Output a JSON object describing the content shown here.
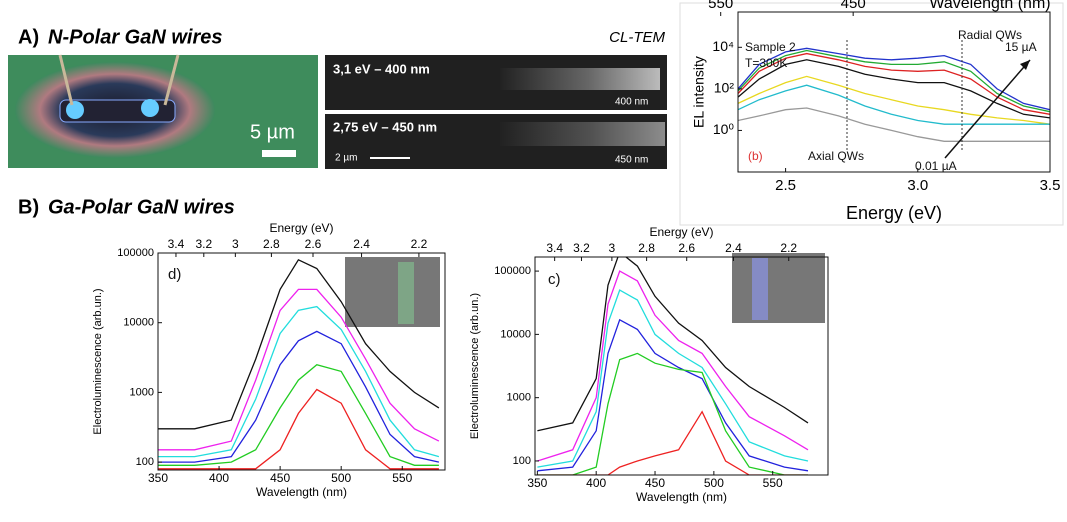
{
  "panels": {
    "a_letter": "A)",
    "a_title": "N-Polar GaN wires",
    "scale_photo": "5 µm",
    "cl_tem": "CL-TEM",
    "tem1": "3,1  eV – 400 nm",
    "tem1_scale": "400 nm",
    "tem2": "2,75 eV – 450 nm",
    "tem2_bar": "2 µm",
    "tem2_scale": "450 nm",
    "b_letter": "B)",
    "b_title": "Ga-Polar GaN wires"
  },
  "chart_data": [
    {
      "type": "line",
      "log_y": true,
      "xlabel": "Energy (eV)",
      "ylabel": "EL intensity",
      "x2label": "Wavelength (nm)",
      "xlim": [
        2.32,
        3.5
      ],
      "xticks": [
        2.5,
        {
          "value": 3,
          "label": "3.0"
        },
        3.5
      ],
      "x2ticks": [
        550,
        450
      ],
      "ylim": [
        0.01,
        500000
      ],
      "yticks": [
        {
          "value": 1,
          "label": "10⁰"
        },
        {
          "value": 100,
          "label": "10²"
        },
        {
          "value": 10000,
          "label": "10⁴"
        }
      ],
      "annotations": [
        "Sample 2",
        "T=300K",
        "Radial QWs",
        "15 µA",
        "Axial QWs",
        "0.01 µA",
        "(b)"
      ],
      "x": [
        2.32,
        2.4,
        2.5,
        2.58,
        2.7,
        2.8,
        2.9,
        3.0,
        3.1,
        3.2,
        3.3,
        3.4,
        3.5
      ],
      "series": [
        {
          "color": "#2233cc",
          "values": [
            100,
            1500,
            6000,
            9000,
            5000,
            3000,
            2500,
            3000,
            4000,
            1500,
            100,
            20,
            10
          ]
        },
        {
          "color": "#22aa33",
          "values": [
            80,
            1000,
            4000,
            7000,
            3500,
            2000,
            1500,
            1500,
            2000,
            700,
            60,
            15,
            8
          ]
        },
        {
          "color": "#dd2222",
          "values": [
            60,
            700,
            3000,
            5000,
            2500,
            1200,
            800,
            700,
            800,
            300,
            40,
            10,
            6
          ]
        },
        {
          "color": "#111111",
          "values": [
            40,
            300,
            1500,
            2500,
            1200,
            500,
            300,
            200,
            200,
            80,
            20,
            6,
            4
          ]
        },
        {
          "color": "#e8d820",
          "values": [
            20,
            60,
            200,
            400,
            150,
            60,
            30,
            15,
            10,
            6,
            4,
            3,
            2
          ]
        },
        {
          "color": "#22bbcc",
          "values": [
            10,
            30,
            80,
            150,
            50,
            15,
            6,
            3,
            2,
            2,
            2,
            2,
            2
          ]
        },
        {
          "color": "#999999",
          "values": [
            3,
            5,
            10,
            12,
            5,
            2,
            1,
            0.5,
            0.3,
            0.3,
            0.3,
            0.3,
            0.3
          ]
        }
      ]
    },
    {
      "type": "line",
      "log_y": true,
      "xlabel": "Wavelength (nm)",
      "ylabel": "Electroluminescence (arb.un.)",
      "x2label": "Energy (eV)",
      "annotations": [
        "d)"
      ],
      "xlim": [
        350,
        585
      ],
      "xticks": [
        350,
        400,
        450,
        500,
        550
      ],
      "x2ticks": [
        3.4,
        3.2,
        3,
        2.8,
        2.6,
        2.4,
        2.2
      ],
      "ylim": [
        77,
        100000
      ],
      "yticks": [
        100,
        1000,
        10000,
        100000
      ],
      "x": [
        350,
        380,
        410,
        430,
        450,
        465,
        480,
        500,
        520,
        540,
        560,
        580
      ],
      "series": [
        {
          "color": "#111111",
          "values": [
            300,
            300,
            400,
            3000,
            30000,
            80000,
            60000,
            20000,
            5000,
            2000,
            1000,
            600
          ]
        },
        {
          "color": "#ee22ee",
          "values": [
            150,
            150,
            200,
            1500,
            15000,
            30000,
            30000,
            12000,
            3000,
            700,
            300,
            200
          ]
        },
        {
          "color": "#22dddd",
          "values": [
            120,
            120,
            150,
            800,
            7000,
            15000,
            17000,
            8000,
            2000,
            400,
            150,
            120
          ]
        },
        {
          "color": "#2222dd",
          "values": [
            100,
            100,
            120,
            400,
            2500,
            5500,
            7500,
            5000,
            1200,
            250,
            120,
            100
          ]
        },
        {
          "color": "#22cc22",
          "values": [
            90,
            90,
            100,
            150,
            600,
            1500,
            2500,
            2000,
            500,
            120,
            90,
            90
          ]
        },
        {
          "color": "#ee2222",
          "values": [
            80,
            80,
            80,
            80,
            150,
            500,
            1100,
            700,
            150,
            80,
            80,
            80
          ]
        }
      ]
    },
    {
      "type": "line",
      "log_y": true,
      "xlabel": "Wavelength (nm)",
      "ylabel": "Electroluminescence (arb.un.)",
      "x2label": "Energy (eV)",
      "annotations": [
        "c)"
      ],
      "xlim": [
        348,
        597
      ],
      "xticks": [
        350,
        400,
        450,
        500,
        550
      ],
      "x2ticks": [
        3.4,
        3.2,
        3,
        2.8,
        2.6,
        2.4,
        2.2
      ],
      "ylim": [
        60,
        167000
      ],
      "yticks": [
        100,
        1000,
        10000,
        100000
      ],
      "x": [
        350,
        380,
        400,
        410,
        420,
        435,
        450,
        470,
        490,
        510,
        530,
        560,
        580
      ],
      "series": [
        {
          "color": "#111111",
          "values": [
            300,
            400,
            2000,
            60000,
            200000,
            120000,
            40000,
            15000,
            8000,
            3000,
            1500,
            700,
            400
          ]
        },
        {
          "color": "#ee22ee",
          "values": [
            100,
            150,
            1000,
            30000,
            100000,
            70000,
            20000,
            8000,
            5000,
            1500,
            500,
            250,
            150
          ]
        },
        {
          "color": "#22dddd",
          "values": [
            80,
            100,
            600,
            15000,
            50000,
            35000,
            10000,
            5000,
            3000,
            800,
            200,
            120,
            100
          ]
        },
        {
          "color": "#2222dd",
          "values": [
            70,
            80,
            300,
            5000,
            17000,
            12000,
            5000,
            3000,
            2000,
            400,
            120,
            80,
            70
          ]
        },
        {
          "color": "#22cc22",
          "values": [
            60,
            60,
            80,
            800,
            4000,
            5000,
            3500,
            2800,
            2500,
            300,
            80,
            60,
            60
          ]
        },
        {
          "color": "#ee2222",
          "values": [
            60,
            60,
            60,
            60,
            80,
            100,
            120,
            150,
            600,
            100,
            60,
            60,
            60
          ]
        }
      ]
    }
  ]
}
